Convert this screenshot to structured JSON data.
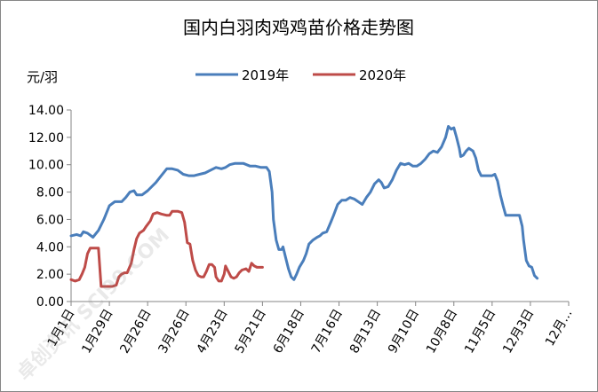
{
  "chart_data": {
    "type": "line",
    "title": "国内白羽肉鸡鸡苗价格走势图",
    "y_unit_label": "元/羽",
    "ylim": [
      0,
      14
    ],
    "yticks": [
      "0.00",
      "2.00",
      "4.00",
      "6.00",
      "8.00",
      "10.00",
      "12.00",
      "14.00"
    ],
    "x_ticks": [
      "1月1日",
      "1月29日",
      "2月26日",
      "3月26日",
      "4月23日",
      "5月21日",
      "6月18日",
      "7月16日",
      "8月13日",
      "9月10日",
      "10月8日",
      "11月5日",
      "12月3日",
      "12月..."
    ],
    "x_tick_days": [
      0,
      28,
      56,
      84,
      112,
      140,
      168,
      196,
      224,
      252,
      280,
      308,
      336,
      364
    ],
    "grid": false,
    "legend_position": "top",
    "series": [
      {
        "name": "2019年",
        "color": "#4a7ebb",
        "points": [
          [
            0,
            4.8
          ],
          [
            4,
            4.9
          ],
          [
            7,
            4.8
          ],
          [
            9,
            5.1
          ],
          [
            12,
            5.0
          ],
          [
            16,
            4.7
          ],
          [
            20,
            5.2
          ],
          [
            24,
            6.0
          ],
          [
            28,
            7.0
          ],
          [
            32,
            7.3
          ],
          [
            37,
            7.3
          ],
          [
            40,
            7.6
          ],
          [
            43,
            8.0
          ],
          [
            46,
            8.1
          ],
          [
            48,
            7.8
          ],
          [
            52,
            7.8
          ],
          [
            56,
            8.1
          ],
          [
            62,
            8.7
          ],
          [
            66,
            9.2
          ],
          [
            70,
            9.7
          ],
          [
            74,
            9.7
          ],
          [
            78,
            9.6
          ],
          [
            82,
            9.3
          ],
          [
            86,
            9.2
          ],
          [
            90,
            9.2
          ],
          [
            94,
            9.3
          ],
          [
            98,
            9.4
          ],
          [
            102,
            9.6
          ],
          [
            106,
            9.8
          ],
          [
            110,
            9.7
          ],
          [
            113,
            9.8
          ],
          [
            116,
            10.0
          ],
          [
            120,
            10.1
          ],
          [
            126,
            10.1
          ],
          [
            131,
            9.9
          ],
          [
            135,
            9.9
          ],
          [
            139,
            9.8
          ],
          [
            143,
            9.8
          ],
          [
            145,
            9.5
          ],
          [
            147,
            8.0
          ],
          [
            148,
            6.0
          ],
          [
            150,
            4.5
          ],
          [
            152,
            3.8
          ],
          [
            154,
            3.8
          ],
          [
            155,
            4.0
          ],
          [
            157,
            3.2
          ],
          [
            159,
            2.4
          ],
          [
            161,
            1.8
          ],
          [
            163,
            1.6
          ],
          [
            165,
            2.0
          ],
          [
            167,
            2.5
          ],
          [
            170,
            3.0
          ],
          [
            172,
            3.5
          ],
          [
            174,
            4.2
          ],
          [
            177,
            4.5
          ],
          [
            180,
            4.7
          ],
          [
            182,
            4.8
          ],
          [
            184,
            5.0
          ],
          [
            187,
            5.1
          ],
          [
            190,
            5.8
          ],
          [
            192,
            6.3
          ],
          [
            195,
            7.1
          ],
          [
            198,
            7.4
          ],
          [
            201,
            7.4
          ],
          [
            204,
            7.6
          ],
          [
            207,
            7.5
          ],
          [
            210,
            7.3
          ],
          [
            213,
            7.1
          ],
          [
            216,
            7.6
          ],
          [
            219,
            8.0
          ],
          [
            222,
            8.6
          ],
          [
            225,
            8.9
          ],
          [
            227,
            8.7
          ],
          [
            229,
            8.3
          ],
          [
            232,
            8.4
          ],
          [
            235,
            8.9
          ],
          [
            238,
            9.6
          ],
          [
            241,
            10.1
          ],
          [
            244,
            10.0
          ],
          [
            247,
            10.1
          ],
          [
            250,
            9.9
          ],
          [
            253,
            9.9
          ],
          [
            256,
            10.1
          ],
          [
            259,
            10.4
          ],
          [
            262,
            10.8
          ],
          [
            265,
            11.0
          ],
          [
            268,
            10.9
          ],
          [
            271,
            11.3
          ],
          [
            274,
            12.0
          ],
          [
            276,
            12.8
          ],
          [
            278,
            12.6
          ],
          [
            280,
            12.7
          ],
          [
            282,
            12.0
          ],
          [
            284,
            11.2
          ],
          [
            285,
            10.6
          ],
          [
            287,
            10.7
          ],
          [
            289,
            11.0
          ],
          [
            291,
            11.2
          ],
          [
            294,
            11.0
          ],
          [
            296,
            10.5
          ],
          [
            298,
            9.6
          ],
          [
            300,
            9.2
          ],
          [
            304,
            9.2
          ],
          [
            308,
            9.2
          ],
          [
            310,
            9.3
          ],
          [
            312,
            8.8
          ],
          [
            314,
            7.8
          ],
          [
            316,
            7.0
          ],
          [
            318,
            6.3
          ],
          [
            324,
            6.3
          ],
          [
            328,
            6.3
          ],
          [
            330,
            5.5
          ],
          [
            331,
            4.5
          ],
          [
            333,
            3.0
          ],
          [
            335,
            2.6
          ],
          [
            337,
            2.5
          ],
          [
            339,
            1.9
          ],
          [
            341,
            1.7
          ]
        ]
      },
      {
        "name": "2020年",
        "color": "#be4b48",
        "points": [
          [
            0,
            1.6
          ],
          [
            3,
            1.5
          ],
          [
            6,
            1.6
          ],
          [
            8,
            2.0
          ],
          [
            10,
            2.5
          ],
          [
            12,
            3.5
          ],
          [
            14,
            3.9
          ],
          [
            17,
            3.9
          ],
          [
            20,
            3.9
          ],
          [
            21,
            2.5
          ],
          [
            22,
            1.1
          ],
          [
            26,
            1.1
          ],
          [
            30,
            1.1
          ],
          [
            33,
            1.2
          ],
          [
            35,
            1.8
          ],
          [
            37,
            2.0
          ],
          [
            39,
            2.1
          ],
          [
            41,
            2.1
          ],
          [
            44,
            2.8
          ],
          [
            46,
            3.8
          ],
          [
            48,
            4.6
          ],
          [
            50,
            5.0
          ],
          [
            53,
            5.2
          ],
          [
            55,
            5.5
          ],
          [
            58,
            5.9
          ],
          [
            60,
            6.4
          ],
          [
            63,
            6.5
          ],
          [
            66,
            6.4
          ],
          [
            70,
            6.3
          ],
          [
            72,
            6.3
          ],
          [
            74,
            6.6
          ],
          [
            78,
            6.6
          ],
          [
            81,
            6.5
          ],
          [
            83,
            5.8
          ],
          [
            85,
            4.3
          ],
          [
            87,
            4.2
          ],
          [
            89,
            3.0
          ],
          [
            91,
            2.3
          ],
          [
            93,
            1.9
          ],
          [
            95,
            1.8
          ],
          [
            97,
            1.8
          ],
          [
            99,
            2.2
          ],
          [
            101,
            2.7
          ],
          [
            103,
            2.7
          ],
          [
            105,
            2.5
          ],
          [
            106,
            1.8
          ],
          [
            108,
            1.5
          ],
          [
            110,
            1.5
          ],
          [
            112,
            2.0
          ],
          [
            113,
            2.6
          ],
          [
            115,
            2.2
          ],
          [
            117,
            1.8
          ],
          [
            119,
            1.7
          ],
          [
            121,
            1.8
          ],
          [
            123,
            2.1
          ],
          [
            125,
            2.3
          ],
          [
            128,
            2.4
          ],
          [
            130,
            2.2
          ],
          [
            132,
            2.8
          ],
          [
            134,
            2.6
          ],
          [
            136,
            2.5
          ],
          [
            140,
            2.5
          ]
        ]
      }
    ]
  },
  "watermark": "卓创资讯 SCI99.COM"
}
